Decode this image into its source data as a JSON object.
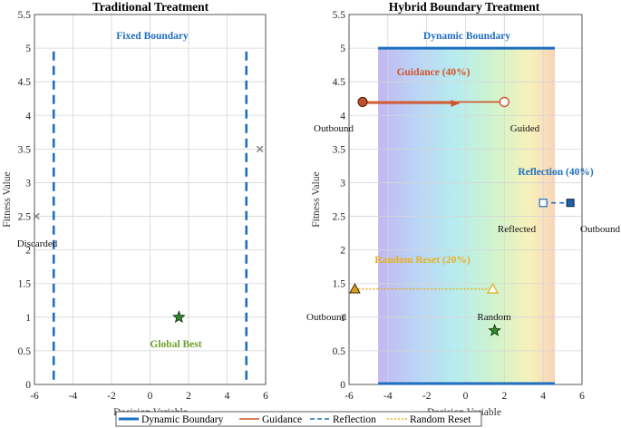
{
  "chart_data": [
    {
      "type": "scatter",
      "title": "Traditional Treatment",
      "xlabel": "Decision Variable",
      "ylabel": "Fitness Value",
      "xlim": [
        -6,
        6
      ],
      "ylim": [
        0,
        5.5
      ],
      "xticks": [
        "-6",
        "-4",
        "-2",
        "0",
        "2",
        "4",
        "6"
      ],
      "yticks": [
        "0",
        "0.5",
        "1",
        "1.5",
        "2",
        "2.5",
        "3",
        "3.5",
        "4",
        "4.5",
        "5",
        "5.5"
      ],
      "grid": true,
      "boundaries": {
        "lower": -5,
        "upper": 5,
        "y_range": [
          0,
          4.95
        ]
      },
      "fixed_boundary_label": "Fixed Boundary",
      "discarded_points": [
        {
          "x": -5.9,
          "y": 2.5
        },
        {
          "x": 5.7,
          "y": 3.5
        }
      ],
      "discarded_label": "Discarded",
      "global_best": {
        "x": 1.5,
        "y": 1.0
      },
      "global_best_label": "Global Best"
    },
    {
      "type": "scatter",
      "title": "Hybrid Boundary Treatment",
      "xlabel": "Decision Variable",
      "ylabel": "Fitness Value",
      "xlim": [
        -6,
        6
      ],
      "ylim": [
        0,
        5.5
      ],
      "xticks": [
        "-6",
        "-4",
        "-2",
        "0",
        "2",
        "4",
        "6"
      ],
      "yticks": [
        "0",
        "0.5",
        "1",
        "1.5",
        "2",
        "2.5",
        "3",
        "3.5",
        "4",
        "4.5",
        "5",
        "5.5"
      ],
      "grid": true,
      "dynamic_boundary": {
        "x_range": [
          -4.5,
          4.6
        ],
        "top_y": 5.0,
        "bottom_y": 0
      },
      "dynamic_boundary_label": "Dynamic Boundary",
      "guidance": {
        "label": "Guidance (40%)",
        "from": {
          "x": -5.3,
          "y": 4.2
        },
        "to": {
          "x": 2.0,
          "y": 4.2
        },
        "from_label": "Outbound",
        "to_label": "Guided"
      },
      "reflection": {
        "label": "Reflection (40%)",
        "from": {
          "x": 5.4,
          "y": 2.7
        },
        "to": {
          "x": 4.0,
          "y": 2.7
        },
        "from_label": "Outbound",
        "to_label": "Reflected"
      },
      "random_reset": {
        "label": "Random Reset (20%)",
        "from": {
          "x": -5.7,
          "y": 1.42
        },
        "to": {
          "x": 1.4,
          "y": 1.42
        },
        "from_label": "Outbound",
        "to_label": "Random"
      },
      "global_best": {
        "x": 1.5,
        "y": 0.8
      }
    }
  ],
  "legend": {
    "items": [
      {
        "label": "Dynamic Boundary",
        "style": "solid"
      },
      {
        "label": "Guidance",
        "style": "solid-thin"
      },
      {
        "label": "Reflection",
        "style": "dashed"
      },
      {
        "label": "Random Reset",
        "style": "dotted"
      }
    ]
  },
  "colors": {
    "boundary": "#1f6fc0",
    "guidance": "#d2542a",
    "reflection": "#1f6fc0",
    "random": "#e8b020",
    "best": "#2f8a2f",
    "best_label": "#6aa02a",
    "discard": "#888888",
    "grid": "#d6d6d6"
  }
}
